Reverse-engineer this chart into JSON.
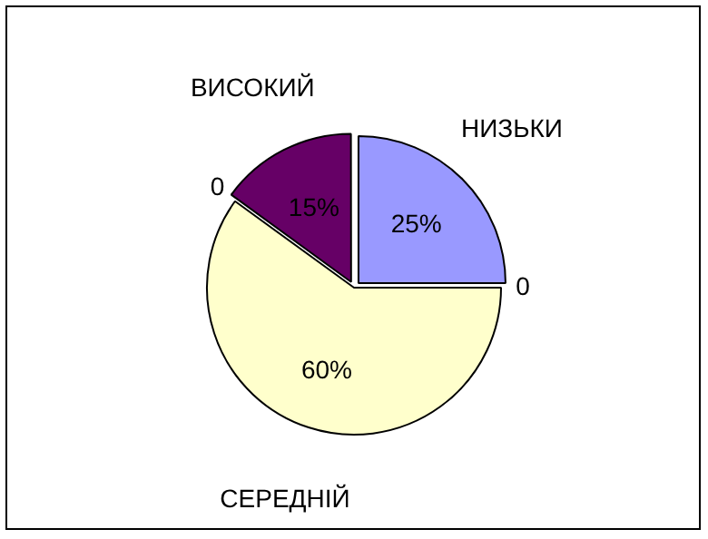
{
  "chart_data": {
    "type": "pie",
    "categories": [
      "НИЗЬКИ",
      null,
      "СЕРЕДНІЙ",
      null,
      "ВИСОКИЙ"
    ],
    "values": [
      25,
      0,
      60,
      0,
      15
    ],
    "colors": [
      "#9999ff",
      "#9999ff",
      "#ffffcc",
      "#ffffcc",
      "#660066"
    ],
    "value_labels": [
      "25%",
      "0",
      "60%",
      "0",
      "15%"
    ],
    "legend": false
  }
}
